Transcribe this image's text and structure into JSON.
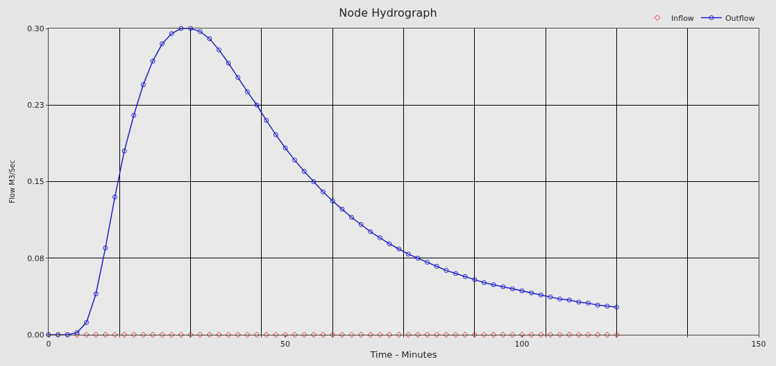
{
  "chart_data": {
    "type": "line",
    "title": "Node Hydrograph",
    "xlabel": "Time - Minutes",
    "ylabel": "Flow M3/Sec",
    "x": [
      0,
      2,
      4,
      6,
      8,
      10,
      12,
      14,
      16,
      18,
      20,
      22,
      24,
      26,
      28,
      30,
      32,
      34,
      36,
      38,
      40,
      42,
      44,
      46,
      48,
      50,
      52,
      54,
      56,
      58,
      60,
      62,
      64,
      66,
      68,
      70,
      72,
      74,
      76,
      78,
      80,
      82,
      84,
      86,
      88,
      90,
      92,
      94,
      96,
      98,
      100,
      102,
      104,
      106,
      108,
      110,
      112,
      114,
      116,
      118,
      120
    ],
    "series": [
      {
        "name": "Inflow",
        "type": "scatter",
        "color": "#e03030",
        "marker": "diamond",
        "values": [
          0,
          0,
          0,
          0,
          0,
          0,
          0,
          0,
          0,
          0,
          0,
          0,
          0,
          0,
          0,
          0,
          0,
          0,
          0,
          0,
          0,
          0,
          0,
          0,
          0,
          0,
          0,
          0,
          0,
          0,
          0,
          0,
          0,
          0,
          0,
          0,
          0,
          0,
          0,
          0,
          0,
          0,
          0,
          0,
          0,
          0,
          0,
          0,
          0,
          0,
          0,
          0,
          0,
          0,
          0,
          0,
          0,
          0,
          0,
          0,
          0
        ]
      },
      {
        "name": "Outflow",
        "color": "#2020d0",
        "marker": "circle",
        "line_style": "solid",
        "values": [
          0,
          0,
          0,
          0.002,
          0.012,
          0.04,
          0.085,
          0.135,
          0.18,
          0.215,
          0.245,
          0.268,
          0.285,
          0.295,
          0.3,
          0.3,
          0.297,
          0.29,
          0.279,
          0.266,
          0.252,
          0.238,
          0.225,
          0.21,
          0.196,
          0.183,
          0.171,
          0.16,
          0.15,
          0.14,
          0.131,
          0.123,
          0.115,
          0.108,
          0.101,
          0.095,
          0.089,
          0.084,
          0.079,
          0.075,
          0.071,
          0.067,
          0.063,
          0.06,
          0.057,
          0.054,
          0.051,
          0.049,
          0.047,
          0.045,
          0.043,
          0.041,
          0.039,
          0.037,
          0.035,
          0.034,
          0.032,
          0.031,
          0.029,
          0.028,
          0.027
        ]
      }
    ],
    "xlim": [
      0,
      150
    ],
    "xticks": [
      0,
      {
        "value": 15,
        "label": null
      },
      {
        "value": 30,
        "label": null
      },
      {
        "value": 45,
        "label": null
      },
      50,
      {
        "value": 60,
        "label": null
      },
      {
        "value": 75,
        "label": null
      },
      {
        "value": 90,
        "label": null
      },
      100,
      {
        "value": 105,
        "label": null
      },
      {
        "value": 120,
        "label": null
      },
      {
        "value": 135,
        "label": null
      },
      150
    ],
    "ylim": [
      0,
      0.3
    ],
    "yticks": [
      {
        "value": 0,
        "label": "0.00"
      },
      {
        "value": 0.075,
        "label": "0.08"
      },
      {
        "value": 0.15,
        "label": "0.15"
      },
      {
        "value": 0.225,
        "label": "0.23"
      },
      {
        "value": 0.3,
        "label": "0.30"
      }
    ],
    "grid": true,
    "legend": "top right"
  }
}
